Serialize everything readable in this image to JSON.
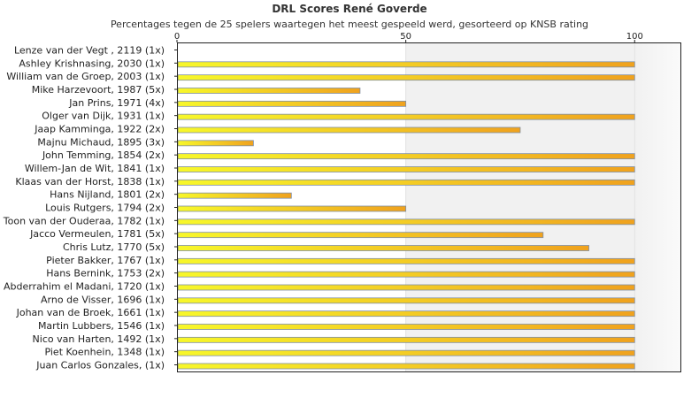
{
  "chart_data": {
    "type": "bar",
    "orientation": "horizontal",
    "title": "DRL Scores René Goverde",
    "subtitle": "Percentages tegen de 25 spelers waartegen het meest gespeeld werd, gesorteerd op KNSB rating",
    "xlim": [
      0,
      110
    ],
    "xticks": [
      0,
      50,
      100
    ],
    "grid": true,
    "categories": [
      "Lenze van der Vegt , 2119 (1x)",
      "Ashley Krishnasing, 2030 (1x)",
      "William van de Groep, 2003 (1x)",
      "Mike Harzevoort, 1987 (5x)",
      "Jan Prins, 1971 (4x)",
      "Olger van Dijk, 1931 (1x)",
      "Jaap Kamminga, 1922 (2x)",
      "Majnu Michaud, 1895 (3x)",
      "John Temming, 1854 (2x)",
      "Willem-Jan de Wit, 1841 (1x)",
      "Klaas van der Horst, 1838 (1x)",
      "Hans Nijland, 1801 (2x)",
      "Louis Rutgers, 1794 (2x)",
      "Toon van der Ouderaa, 1782 (1x)",
      "Jacco Vermeulen, 1781 (5x)",
      "Chris Lutz, 1770 (5x)",
      "Pieter Bakker, 1767 (1x)",
      "Hans Bernink, 1753 (2x)",
      "Abderrahim el Madani, 1720 (1x)",
      "Arno de Visser, 1696 (1x)",
      "Johan van de Broek, 1661 (1x)",
      "Martin Lubbers, 1546 (1x)",
      "Nico van Harten, 1492 (1x)",
      "Piet Koenhein, 1348 (1x)",
      "Juan Carlos Gonzales,  (1x)"
    ],
    "values": [
      0,
      100,
      100,
      40,
      50,
      100,
      75,
      16.7,
      100,
      100,
      100,
      25,
      50,
      100,
      80,
      90,
      100,
      100,
      100,
      100,
      100,
      100,
      100,
      100,
      100
    ],
    "colors": {
      "bar_start": "#f7f72a",
      "bar_end": "#f0a21e",
      "bar_stroke": "#7f8fa6",
      "band_light": "#ffffff",
      "band_shaded": "#f1f1f1",
      "axis": "#222222"
    }
  }
}
